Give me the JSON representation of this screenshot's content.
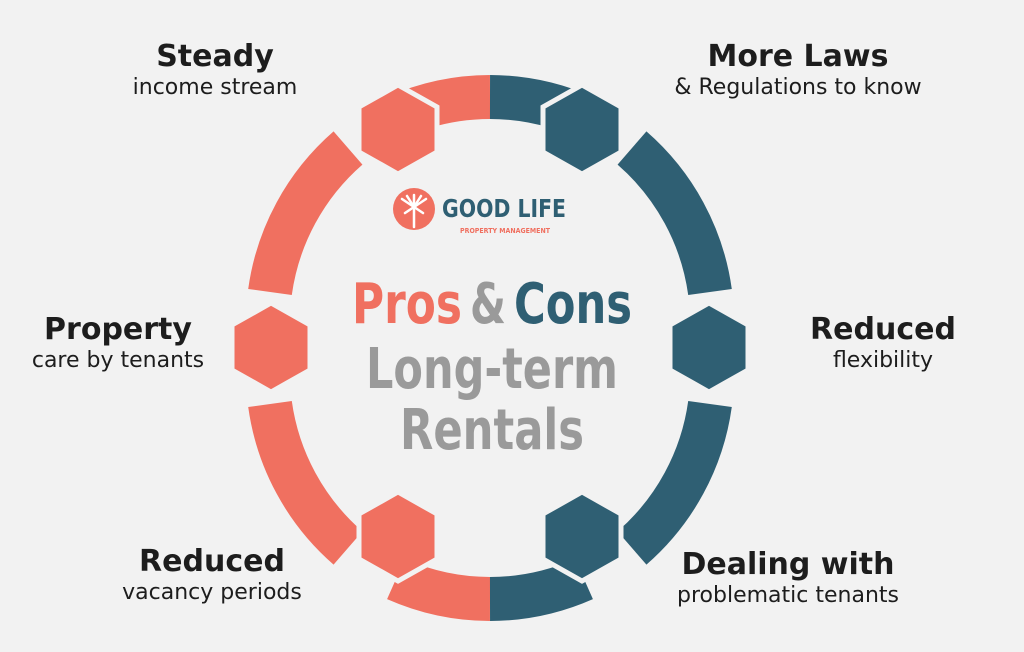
{
  "brand": {
    "name": "GOOD LIFE",
    "tagline": "PROPERTY MANAGEMENT"
  },
  "headline": {
    "pros": "Pros",
    "ampersand": "&",
    "cons": "Cons",
    "line2": "Long-term",
    "line3": "Rentals"
  },
  "pros": [
    {
      "title": "Steady",
      "subtitle": "income stream"
    },
    {
      "title": "Property",
      "subtitle": "care by tenants"
    },
    {
      "title": "Reduced",
      "subtitle": "vacancy periods"
    }
  ],
  "cons": [
    {
      "title": "More Laws",
      "subtitle": "& Regulations to know"
    },
    {
      "title": "Reduced",
      "subtitle": "flexibility"
    },
    {
      "title": "Dealing with",
      "subtitle": "problematic tenants"
    }
  ],
  "colors": {
    "background": "#f2f2f2",
    "pros": "#f07060",
    "cons": "#2f5f73",
    "grey_text": "#9a9a9a",
    "dark_text": "#1d1d1d"
  }
}
